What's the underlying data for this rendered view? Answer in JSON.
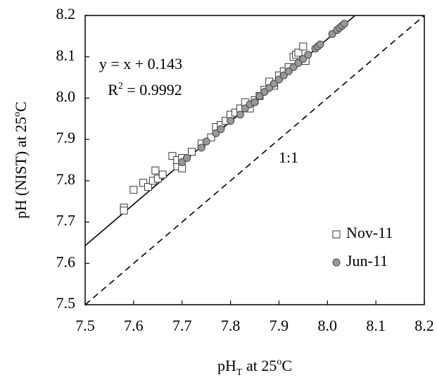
{
  "chart_data": {
    "type": "scatter",
    "x_label": {
      "main": "pH",
      "sub": "T",
      "rest": " at 25",
      "sup": "o",
      "end": "C"
    },
    "y_label": {
      "main": "pH (NIST) at 25",
      "sup": "o",
      "end": "C"
    },
    "xlim": [
      7.5,
      8.2
    ],
    "ylim": [
      7.5,
      8.2
    ],
    "xticks": [
      7.5,
      7.6,
      7.7,
      7.8,
      7.9,
      {
        "value": 8,
        "label": "8.0"
      },
      8.1,
      8.2
    ],
    "yticks": [
      7.5,
      7.6,
      7.7,
      7.8,
      7.9,
      {
        "value": 8,
        "label": "8.0"
      },
      8.1,
      8.2
    ],
    "legend": "lower right",
    "fit_lines": [
      {
        "slope": 1,
        "intercept": 0.143,
        "style": "solid"
      },
      {
        "slope": 1,
        "intercept": 0,
        "style": "dashed"
      }
    ],
    "annotations": {
      "equation": "y = x + 0.143",
      "r2": {
        "main": "R",
        "sup": "2",
        "rest": " = 0.9992"
      },
      "identity": "1:1"
    },
    "series": [
      {
        "name": "Nov-11",
        "marker": "square",
        "color": "#ffffff",
        "x": [
          7.58,
          7.58,
          7.6,
          7.62,
          7.63,
          7.64,
          7.645,
          7.65,
          7.66,
          7.68,
          7.69,
          7.69,
          7.7,
          7.7,
          7.72,
          7.74,
          7.76,
          7.77,
          7.78,
          7.79,
          7.8,
          7.81,
          7.82,
          7.83,
          7.84,
          7.85,
          7.86,
          7.87,
          7.88,
          7.89,
          7.9,
          7.91,
          7.92,
          7.93,
          7.935,
          7.94,
          7.95,
          7.955
        ],
        "y": [
          7.735,
          7.728,
          7.778,
          7.795,
          7.785,
          7.8,
          7.825,
          7.805,
          7.815,
          7.86,
          7.835,
          7.85,
          7.855,
          7.83,
          7.87,
          7.89,
          7.905,
          7.93,
          7.935,
          7.945,
          7.96,
          7.965,
          7.975,
          7.99,
          7.975,
          7.995,
          8.005,
          8.02,
          8.04,
          8.03,
          8.055,
          8.065,
          8.075,
          8.1,
          8.105,
          8.11,
          8.125,
          8.09
        ]
      },
      {
        "name": "Jun-11",
        "marker": "circle",
        "color": "#999999",
        "x": [
          7.7,
          7.71,
          7.74,
          7.75,
          7.77,
          7.78,
          7.8,
          7.82,
          7.83,
          7.84,
          7.85,
          7.86,
          7.87,
          7.88,
          7.89,
          7.9,
          7.91,
          7.92,
          7.93,
          7.94,
          7.95,
          7.96,
          7.975,
          7.98,
          7.985,
          8.01,
          8.02,
          8.025,
          8.03,
          8.035
        ],
        "y": [
          7.845,
          7.855,
          7.88,
          7.895,
          7.915,
          7.925,
          7.945,
          7.96,
          7.975,
          7.985,
          7.99,
          8.005,
          8.015,
          8.025,
          8.035,
          8.045,
          8.055,
          8.065,
          8.075,
          8.085,
          8.095,
          8.105,
          8.12,
          8.125,
          8.13,
          8.155,
          8.165,
          8.17,
          8.175,
          8.18
        ]
      }
    ]
  }
}
